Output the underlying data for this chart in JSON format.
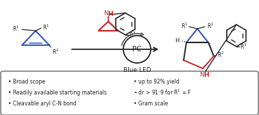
{
  "bg_color": "#ffffff",
  "text_color": "#222222",
  "blue_color": "#3355bb",
  "red_color": "#cc2222",
  "bullet_left": [
    "Broad scope",
    "Readily available starting materials",
    "Cleavable aryl C-N bond"
  ],
  "bullet_right": [
    "up to 92% yield",
    "dr > 91:9 for R$^1$ = F",
    "Gram scale"
  ],
  "pc_label": "PC",
  "blue_led_label": "Blue LED",
  "figw": 3.78,
  "figh": 1.68,
  "dpi": 100
}
